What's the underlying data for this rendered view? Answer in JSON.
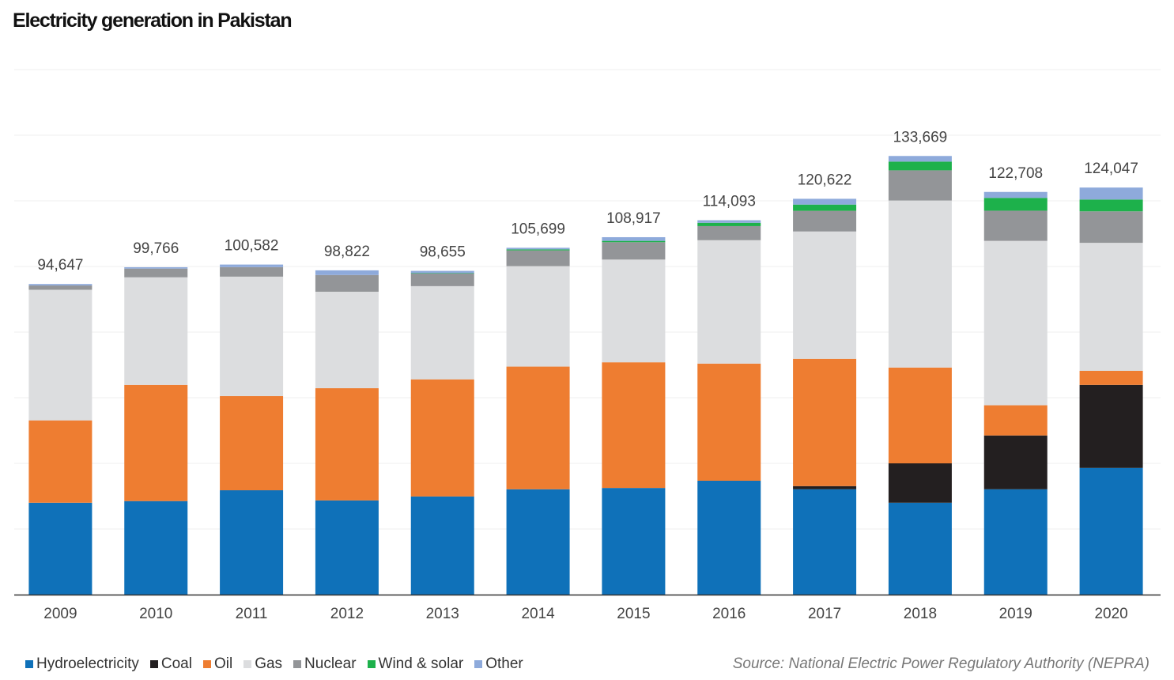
{
  "chart_data": {
    "type": "bar",
    "stacked": true,
    "title": "Electricity generation in Pakistan",
    "source": "Source: National Electric Power Regulatory Authority (NEPRA)",
    "categories": [
      "2009",
      "2010",
      "2011",
      "2012",
      "2013",
      "2014",
      "2015",
      "2016",
      "2017",
      "2018",
      "2019",
      "2020"
    ],
    "totals": [
      "94,647",
      "99,766",
      "100,582",
      "98,822",
      "98,655",
      "105,699",
      "108,917",
      "114,093",
      "120,622",
      "133,669",
      "122,708",
      "124,047"
    ],
    "ylim": [
      0,
      160000
    ],
    "grid": true,
    "legend_position": "bottom-left",
    "series": [
      {
        "name": "Hydroelectricity",
        "color": "#0f71b9",
        "values": [
          28000,
          28500,
          31800,
          28700,
          29900,
          32100,
          32500,
          34700,
          32100,
          28000,
          32100,
          38600
        ]
      },
      {
        "name": "Coal",
        "color": "#231f20",
        "values": [
          0,
          0,
          0,
          0,
          0,
          0,
          0,
          0,
          960,
          12000,
          16400,
          25300
        ]
      },
      {
        "name": "Oil",
        "color": "#ee7d31",
        "values": [
          25100,
          35400,
          28700,
          34200,
          35700,
          37400,
          38300,
          35700,
          38800,
          29200,
          9200,
          4300
        ]
      },
      {
        "name": "Gas",
        "color": "#dcdddf",
        "values": [
          39800,
          32800,
          36400,
          29400,
          28400,
          30600,
          31300,
          37600,
          38800,
          50900,
          50100,
          39000
        ]
      },
      {
        "name": "Nuclear",
        "color": "#939598",
        "values": [
          1300,
          2650,
          2900,
          5100,
          3860,
          4800,
          5300,
          4300,
          6300,
          9200,
          9200,
          9600
        ]
      },
      {
        "name": "Wind & solar",
        "color": "#1db14b",
        "values": [
          0,
          0,
          0,
          0,
          100,
          300,
          400,
          1000,
          1900,
          2650,
          3900,
          3600
        ]
      },
      {
        "name": "Other",
        "color": "#8eaadb",
        "values": [
          447,
          416,
          782,
          1422,
          695,
          499,
          1117,
          793,
          1762,
          1719,
          1808,
          3647
        ]
      }
    ]
  }
}
